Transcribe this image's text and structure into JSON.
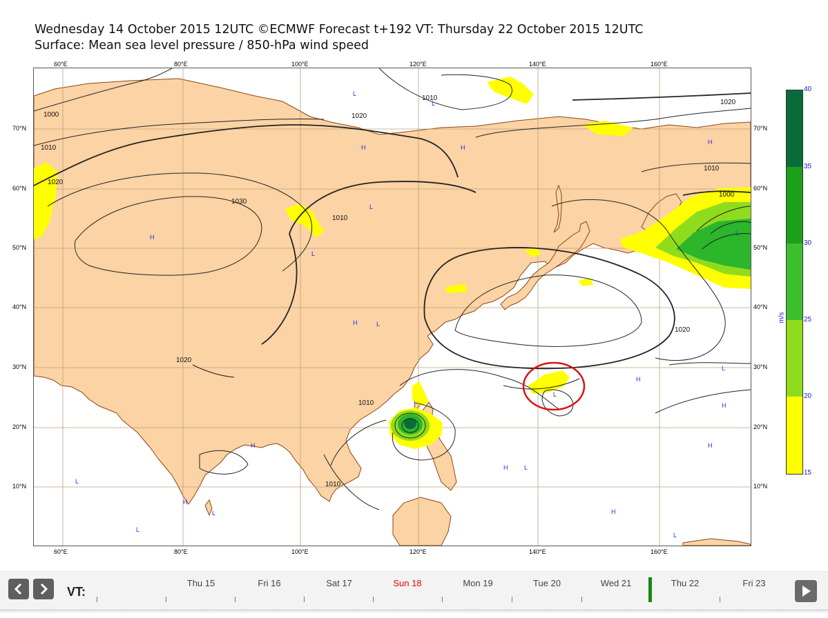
{
  "header": {
    "title": "Wednesday 14 October 2015 12UTC ©ECMWF Forecast t+192 VT: Thursday 22 October 2015 12UTC",
    "subtitle": "Surface: Mean sea level pressure / 850-hPa wind speed"
  },
  "map": {
    "lon_labels": [
      "60°E",
      "80°E",
      "100°E",
      "120°E",
      "140°E",
      "160°E"
    ],
    "lat_labels": [
      "70°N",
      "60°N",
      "50°N",
      "40°N",
      "30°N",
      "20°N",
      "10°N"
    ],
    "isobar_labels": [
      "1000",
      "1010",
      "1020",
      "1030",
      "1010",
      "1010",
      "1020",
      "1010",
      "1020",
      "1010",
      "1000",
      "1020",
      "1020",
      "1010"
    ],
    "pressure_centers": {
      "high": "H",
      "low": "L"
    },
    "colors": {
      "land": "#fbd3a4",
      "coast": "#8b4513",
      "wind_15": "#ffff00",
      "wind_20": "#8fdc1e",
      "wind_25": "#2bb62b",
      "wind_35": "#0a6b3a"
    },
    "highlight": "red circle around low-pressure system near 25°N 142°E"
  },
  "colorbar": {
    "labels": [
      "40",
      "35",
      "30",
      "25",
      "20",
      "15"
    ],
    "unit": "m/s",
    "colors": [
      "#0a6b3a",
      "#1aa01a",
      "#3cbf2c",
      "#8fdc1e",
      "#ffff00"
    ]
  },
  "timeline": {
    "label": "VT:",
    "prev_icon": "chevron-left-icon",
    "next_icon": "chevron-right-icon",
    "play_icon": "play-icon",
    "days": [
      "Thu 15",
      "Fri 16",
      "Sat 17",
      "Sun 18",
      "Mon 19",
      "Tue 20",
      "Wed 21",
      "Thu 22",
      "Fri 23"
    ],
    "highlight_day": "Sun 18",
    "current_day": "Thu 22"
  }
}
